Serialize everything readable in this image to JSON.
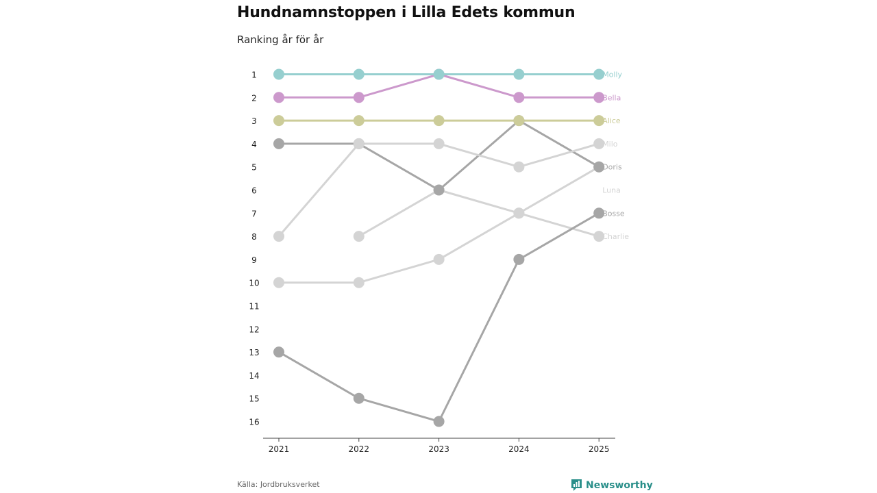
{
  "header": {
    "title": "Hundnamnstoppen i Lilla Edets kommun",
    "subtitle": "Ranking år för år"
  },
  "footer": {
    "source": "Källa: Jordbruksverket",
    "brand": "Newsworthy"
  },
  "colors": {
    "molly": "#96cfcf",
    "bella": "#cc99cc",
    "alice": "#cccc99",
    "dark_gray": "#a6a6a6",
    "light_gray": "#d4d4d4",
    "axis": "#444444",
    "brand": "#2a8f8a"
  },
  "chart_data": {
    "type": "line",
    "subtype": "bump",
    "title": "Hundnamnstoppen i Lilla Edets kommun",
    "subtitle": "Ranking år för år",
    "x": [
      "2021",
      "2022",
      "2023",
      "2024",
      "2025"
    ],
    "y_ticks": [
      "1",
      "2",
      "3",
      "4",
      "5",
      "6",
      "7",
      "8",
      "9",
      "10",
      "11",
      "12",
      "13",
      "14",
      "15",
      "16"
    ],
    "ylim": [
      1,
      16
    ],
    "y_reversed": true,
    "series": [
      {
        "name": "Molly",
        "color": "#96cfcf",
        "ranks": [
          1,
          1,
          1,
          1,
          1
        ]
      },
      {
        "name": "Bella",
        "color": "#cc99cc",
        "ranks": [
          2,
          2,
          1,
          2,
          2
        ]
      },
      {
        "name": "Alice",
        "color": "#cccc99",
        "ranks": [
          3,
          3,
          3,
          3,
          3
        ]
      },
      {
        "name": "Milo",
        "color": "#d4d4d4",
        "ranks": [
          8,
          4,
          4,
          5,
          4
        ]
      },
      {
        "name": "Doris",
        "color": "#a6a6a6",
        "ranks": [
          4,
          4,
          6,
          3,
          5
        ]
      },
      {
        "name": "Luna",
        "color": "#d4d4d4",
        "ranks": [
          10,
          10,
          9,
          7,
          5
        ]
      },
      {
        "name": "Bosse",
        "color": "#a6a6a6",
        "ranks": [
          13,
          15,
          16,
          9,
          7
        ]
      },
      {
        "name": "Charlie",
        "color": "#d4d4d4",
        "ranks": [
          null,
          8,
          6,
          7,
          8
        ]
      }
    ]
  }
}
